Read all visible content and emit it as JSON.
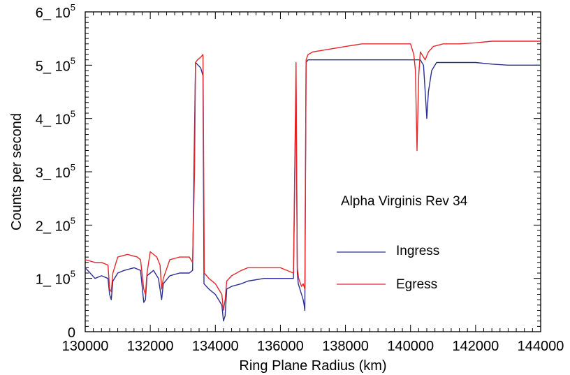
{
  "chart_data": {
    "type": "line",
    "annotation": "Alpha Virginis Rev 34",
    "xlabel": "Ring Plane Radius (km)",
    "ylabel": "Counts per second",
    "xlim": [
      130000,
      144000
    ],
    "ylim": [
      0,
      600000
    ],
    "x_ticks": [
      {
        "value": 130000,
        "label": "130000"
      },
      {
        "value": 132000,
        "label": "132000"
      },
      {
        "value": 134000,
        "label": "134000"
      },
      {
        "value": 136000,
        "label": "136000"
      },
      {
        "value": 138000,
        "label": "138000"
      },
      {
        "value": 140000,
        "label": "140000"
      },
      {
        "value": 142000,
        "label": "142000"
      },
      {
        "value": 144000,
        "label": "144000"
      }
    ],
    "y_ticks": [
      {
        "value": 0,
        "mant": "0",
        "exp": ""
      },
      {
        "value": 100000,
        "mant": "1_ 10",
        "exp": "5"
      },
      {
        "value": 200000,
        "mant": "2_ 10",
        "exp": "5"
      },
      {
        "value": 300000,
        "mant": "3_ 10",
        "exp": "5"
      },
      {
        "value": 400000,
        "mant": "4_ 10",
        "exp": "5"
      },
      {
        "value": 500000,
        "mant": "5_ 10",
        "exp": "5"
      },
      {
        "value": 600000,
        "mant": "6_ 10",
        "exp": "5"
      }
    ],
    "legend_position": "center-right",
    "series": [
      {
        "name": "Ingress",
        "color": "#2b2f8f",
        "points": [
          [
            130000,
            120000
          ],
          [
            130150,
            110000
          ],
          [
            130300,
            100000
          ],
          [
            130500,
            105000
          ],
          [
            130700,
            100000
          ],
          [
            130750,
            70000
          ],
          [
            130800,
            60000
          ],
          [
            130850,
            95000
          ],
          [
            131000,
            110000
          ],
          [
            131200,
            115000
          ],
          [
            131500,
            120000
          ],
          [
            131700,
            115000
          ],
          [
            131800,
            55000
          ],
          [
            131850,
            60000
          ],
          [
            131900,
            105000
          ],
          [
            132100,
            115000
          ],
          [
            132250,
            100000
          ],
          [
            132350,
            60000
          ],
          [
            132400,
            90000
          ],
          [
            132600,
            105000
          ],
          [
            132900,
            110000
          ],
          [
            133200,
            110000
          ],
          [
            133300,
            115000
          ],
          [
            133360,
            380000
          ],
          [
            133390,
            505000
          ],
          [
            133550,
            495000
          ],
          [
            133620,
            480000
          ],
          [
            133650,
            90000
          ],
          [
            133800,
            80000
          ],
          [
            134000,
            70000
          ],
          [
            134200,
            50000
          ],
          [
            134250,
            20000
          ],
          [
            134300,
            30000
          ],
          [
            134350,
            80000
          ],
          [
            134500,
            85000
          ],
          [
            134800,
            90000
          ],
          [
            135000,
            95000
          ],
          [
            135500,
            100000
          ],
          [
            136000,
            100000
          ],
          [
            136400,
            100000
          ],
          [
            136480,
            470000
          ],
          [
            136520,
            110000
          ],
          [
            136550,
            90000
          ],
          [
            136650,
            70000
          ],
          [
            136700,
            60000
          ],
          [
            136730,
            50000
          ],
          [
            136750,
            40000
          ],
          [
            136790,
            505000
          ],
          [
            136850,
            510000
          ],
          [
            137000,
            510000
          ],
          [
            137500,
            510000
          ],
          [
            138000,
            510000
          ],
          [
            138500,
            510000
          ],
          [
            139000,
            510000
          ],
          [
            139500,
            510000
          ],
          [
            140000,
            510000
          ],
          [
            140300,
            510000
          ],
          [
            140400,
            500000
          ],
          [
            140450,
            450000
          ],
          [
            140500,
            400000
          ],
          [
            140550,
            450000
          ],
          [
            140650,
            490000
          ],
          [
            140800,
            505000
          ],
          [
            141000,
            505000
          ],
          [
            141500,
            505000
          ],
          [
            142000,
            505000
          ],
          [
            142500,
            502000
          ],
          [
            143000,
            500000
          ],
          [
            143500,
            500000
          ],
          [
            144000,
            500000
          ]
        ]
      },
      {
        "name": "Egress",
        "color": "#e5262b",
        "points": [
          [
            130000,
            135000
          ],
          [
            130300,
            130000
          ],
          [
            130500,
            130000
          ],
          [
            130700,
            125000
          ],
          [
            130750,
            80000
          ],
          [
            130800,
            75000
          ],
          [
            130850,
            110000
          ],
          [
            131000,
            140000
          ],
          [
            131300,
            145000
          ],
          [
            131600,
            140000
          ],
          [
            131700,
            135000
          ],
          [
            131800,
            80000
          ],
          [
            131850,
            70000
          ],
          [
            131900,
            110000
          ],
          [
            132000,
            150000
          ],
          [
            132200,
            140000
          ],
          [
            132300,
            125000
          ],
          [
            132350,
            80000
          ],
          [
            132400,
            100000
          ],
          [
            132600,
            135000
          ],
          [
            132900,
            140000
          ],
          [
            133200,
            140000
          ],
          [
            133300,
            130000
          ],
          [
            133360,
            300000
          ],
          [
            133390,
            505000
          ],
          [
            133450,
            510000
          ],
          [
            133550,
            515000
          ],
          [
            133620,
            520000
          ],
          [
            133660,
            110000
          ],
          [
            133800,
            100000
          ],
          [
            134000,
            90000
          ],
          [
            134200,
            70000
          ],
          [
            134250,
            40000
          ],
          [
            134300,
            60000
          ],
          [
            134350,
            95000
          ],
          [
            134500,
            105000
          ],
          [
            134800,
            115000
          ],
          [
            135000,
            120000
          ],
          [
            135500,
            120000
          ],
          [
            136000,
            120000
          ],
          [
            136400,
            110000
          ],
          [
            136480,
            505000
          ],
          [
            136520,
            120000
          ],
          [
            136560,
            100000
          ],
          [
            136650,
            85000
          ],
          [
            136700,
            90000
          ],
          [
            136750,
            80000
          ],
          [
            136790,
            510000
          ],
          [
            136850,
            520000
          ],
          [
            137000,
            525000
          ],
          [
            137500,
            530000
          ],
          [
            138000,
            535000
          ],
          [
            138500,
            540000
          ],
          [
            139000,
            540000
          ],
          [
            139500,
            540000
          ],
          [
            140000,
            540000
          ],
          [
            140100,
            520000
          ],
          [
            140150,
            490000
          ],
          [
            140200,
            340000
          ],
          [
            140250,
            480000
          ],
          [
            140300,
            525000
          ],
          [
            140450,
            510000
          ],
          [
            140550,
            525000
          ],
          [
            140700,
            535000
          ],
          [
            141000,
            540000
          ],
          [
            141500,
            540000
          ],
          [
            142000,
            542000
          ],
          [
            142500,
            545000
          ],
          [
            143000,
            545000
          ],
          [
            143500,
            545000
          ],
          [
            144000,
            545000
          ]
        ]
      }
    ]
  }
}
